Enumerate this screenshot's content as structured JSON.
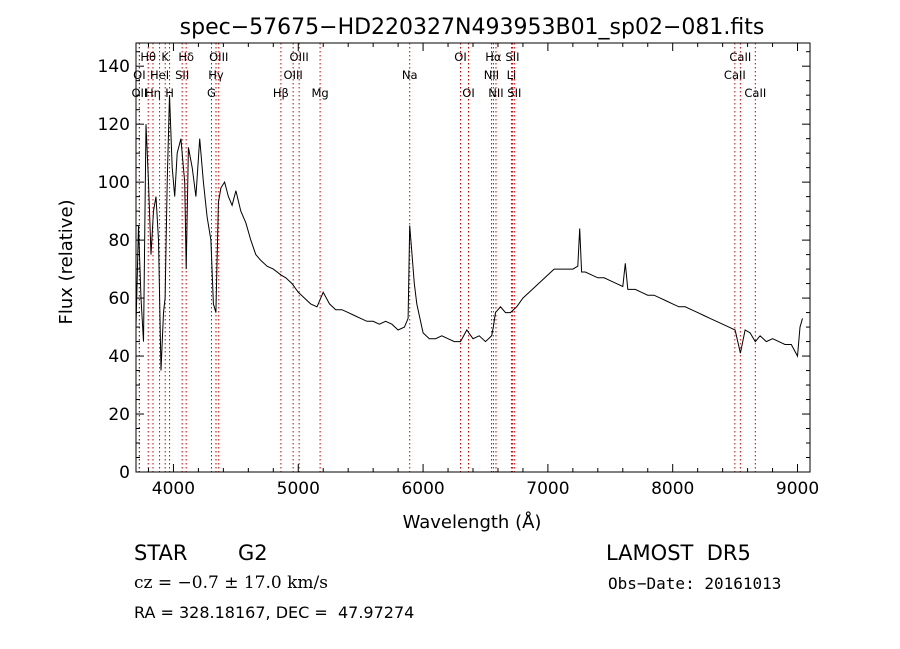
{
  "chart_data": {
    "type": "line",
    "title": "spec−57675−HD220327N493953B01_sp02−081.fits",
    "xlabel": "Wavelength (Å)",
    "ylabel": "Flux (relative)",
    "xlim": [
      3700,
      9100
    ],
    "ylim": [
      0,
      148
    ],
    "xticks": [
      4000,
      5000,
      6000,
      7000,
      8000,
      9000
    ],
    "xtick_labels": [
      "4000",
      "5000",
      "6000",
      "7000",
      "8000",
      "9000"
    ],
    "yticks": [
      0,
      20,
      40,
      60,
      80,
      100,
      120,
      140
    ],
    "ytick_labels": [
      "0",
      "20",
      "40",
      "60",
      "80",
      "100",
      "120",
      "140"
    ],
    "grid": false,
    "line_color": "#000000",
    "marker_color": "#cc0000",
    "series": [
      {
        "x": [
          3700,
          3720,
          3740,
          3760,
          3780,
          3800,
          3820,
          3840,
          3860,
          3880,
          3900,
          3920,
          3933,
          3950,
          3968,
          3990,
          4010,
          4030,
          4060,
          4090,
          4102,
          4120,
          4150,
          4180,
          4210,
          4240,
          4270,
          4300,
          4320,
          4340,
          4360,
          4380,
          4410,
          4440,
          4470,
          4500,
          4540,
          4580,
          4620,
          4660,
          4700,
          4750,
          4800,
          4861,
          4900,
          4950,
          5000,
          5050,
          5100,
          5150,
          5200,
          5250,
          5300,
          5350,
          5400,
          5450,
          5500,
          5550,
          5600,
          5650,
          5700,
          5750,
          5800,
          5850,
          5880,
          5893,
          5910,
          5930,
          5950,
          5970,
          6000,
          6050,
          6100,
          6150,
          6200,
          6250,
          6300,
          6350,
          6400,
          6450,
          6500,
          6550,
          6563,
          6580,
          6620,
          6660,
          6700,
          6750,
          6800,
          6850,
          6900,
          6950,
          7000,
          7050,
          7100,
          7150,
          7200,
          7240,
          7255,
          7270,
          7300,
          7350,
          7400,
          7450,
          7500,
          7550,
          7600,
          7620,
          7640,
          7700,
          7750,
          7800,
          7850,
          7900,
          7950,
          8000,
          8050,
          8100,
          8150,
          8200,
          8250,
          8300,
          8350,
          8400,
          8450,
          8500,
          8542,
          8580,
          8620,
          8662,
          8700,
          8750,
          8800,
          8850,
          8900,
          8950,
          9000,
          9020,
          9040
        ],
        "values": [
          50,
          85,
          60,
          45,
          120,
          100,
          75,
          90,
          95,
          80,
          35,
          55,
          60,
          100,
          130,
          105,
          95,
          110,
          115,
          100,
          70,
          112,
          105,
          95,
          115,
          100,
          88,
          80,
          58,
          55,
          93,
          98,
          100,
          95,
          92,
          97,
          90,
          86,
          80,
          75,
          73,
          71,
          70,
          68,
          67,
          65,
          62,
          60,
          58,
          57,
          62,
          58,
          56,
          56,
          55,
          54,
          53,
          52,
          52,
          51,
          52,
          51,
          49,
          50,
          53,
          85,
          76,
          65,
          58,
          54,
          48,
          46,
          46,
          47,
          46,
          45,
          45,
          49,
          46,
          47,
          45,
          47,
          50,
          55,
          57,
          55,
          55,
          57,
          60,
          62,
          64,
          66,
          68,
          70,
          70,
          70,
          70,
          71,
          84,
          69,
          69,
          68,
          67,
          67,
          66,
          65,
          64,
          72,
          63,
          63,
          62,
          61,
          61,
          60,
          59,
          58,
          57,
          57,
          56,
          55,
          54,
          53,
          52,
          51,
          50,
          49,
          41,
          49,
          48,
          45,
          47,
          45,
          46,
          45,
          44,
          44,
          40,
          50,
          53
        ]
      }
    ],
    "lines": [
      {
        "label": "Hθ",
        "x": 3798,
        "row": 0
      },
      {
        "label": "OII",
        "x": 3727,
        "row": 2
      },
      {
        "label": "Hη",
        "x": 3836,
        "row": 2
      },
      {
        "label": "OI",
        "x": 3727,
        "row": 1
      },
      {
        "label": "HeI",
        "x": 3889,
        "row": 1
      },
      {
        "label": "K",
        "x": 3934,
        "row": 0
      },
      {
        "label": "H",
        "x": 3969,
        "row": 2
      },
      {
        "label": "Hδ",
        "x": 4102,
        "row": 0
      },
      {
        "label": "SII",
        "x": 4070,
        "row": 1
      },
      {
        "label": "OIII",
        "x": 4363,
        "row": 0
      },
      {
        "label": "Hγ",
        "x": 4341,
        "row": 1
      },
      {
        "label": "G",
        "x": 4305,
        "row": 2
      },
      {
        "label": "OIII",
        "x": 5007,
        "row": 0
      },
      {
        "label": "OIII",
        "x": 4959,
        "row": 1
      },
      {
        "label": "Hβ",
        "x": 4861,
        "row": 2
      },
      {
        "label": "Mg",
        "x": 5175,
        "row": 2
      },
      {
        "label": "Na",
        "x": 5893,
        "row": 1
      },
      {
        "label": "OI",
        "x": 6300,
        "row": 0
      },
      {
        "label": "OI",
        "x": 6364,
        "row": 2
      },
      {
        "label": "Hα",
        "x": 6563,
        "row": 0
      },
      {
        "label": "NII",
        "x": 6548,
        "row": 1
      },
      {
        "label": "NII",
        "x": 6584,
        "row": 2
      },
      {
        "label": "SII",
        "x": 6716,
        "row": 0
      },
      {
        "label": "Li",
        "x": 6708,
        "row": 1
      },
      {
        "label": "SII",
        "x": 6731,
        "row": 2
      },
      {
        "label": "CaII",
        "x": 8542,
        "row": 0
      },
      {
        "label": "CaII",
        "x": 8498,
        "row": 1
      },
      {
        "label": "CaII",
        "x": 8662,
        "row": 2
      }
    ]
  },
  "info": {
    "object_class": "STAR",
    "subclass": "G2",
    "redshift": "cz = −0.7 ± 17.0 km/s",
    "coords": "RA = 328.18167, DEC =  47.97274",
    "survey": "LAMOST  DR5",
    "obs_date": "Obs−Date: 20161013"
  }
}
